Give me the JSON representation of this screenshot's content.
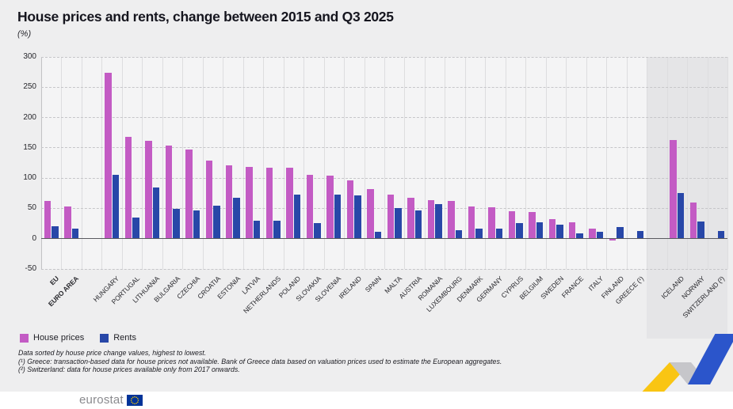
{
  "page": {
    "title": "House prices and rents, change between 2015 and Q3 2025",
    "unit_label": "(%)"
  },
  "legend": {
    "house_prices": "House prices",
    "rents": "Rents"
  },
  "footnotes": {
    "line1": "Data sorted by house price change values, highest to lowest.",
    "line2": "(¹) Greece: transaction-based data for house prices not available. Bank of Greece data based on valuation prices used to estimate the European aggregates.",
    "line3": "(²) Switzerland: data for house prices available only from 2017 onwards."
  },
  "footer": {
    "logo_text": "eurostat"
  },
  "colors": {
    "house_prices": "#c35bc4",
    "rents": "#2847a8",
    "efta_shade": "#e5e5e7",
    "ribbon_yellow": "#f9c513",
    "ribbon_gray": "#c6c6ca",
    "ribbon_blue": "#2b55cb",
    "eu_flag_blue": "#003399",
    "eu_star_yellow": "#ffcc00"
  },
  "chart_data": {
    "type": "bar",
    "title": "House prices and rents, change between 2015 and Q3 2025",
    "ylabel": "(%)",
    "ylim": [
      -50,
      300
    ],
    "yticks": [
      300,
      250,
      200,
      150,
      100,
      50,
      0,
      -50
    ],
    "grid": "horizontal dashed gridlines every 50, vertical column separators, solid zero line",
    "legend_position": "bottom-left",
    "sort_note": "Data sorted by house price change values, highest to lowest",
    "categories": [
      "EU",
      "EURO AREA",
      "HUNGARY",
      "PORTUGAL",
      "LITHUANIA",
      "BULGARIA",
      "CZECHIA",
      "CROATIA",
      "ESTONIA",
      "LATVIA",
      "NETHERLANDS",
      "POLAND",
      "SLOVAKIA",
      "SLOVENIA",
      "IRELAND",
      "SPAIN",
      "MALTA",
      "AUSTRIA",
      "ROMANIA",
      "LUXEMBOURG",
      "DENMARK",
      "GERMANY",
      "CYPRUS",
      "BELGIUM",
      "SWEDEN",
      "FRANCE",
      "ITALY",
      "FINLAND",
      "GREECE (¹)",
      "ICELAND",
      "NORWAY",
      "SWITZERLAND (²)"
    ],
    "bold_categories": [
      "EU",
      "EURO AREA"
    ],
    "gap_after_indices": [
      1,
      28
    ],
    "shaded_from_index": 29,
    "series": [
      {
        "name": "House prices",
        "color": "#c35bc4",
        "values": [
          62,
          53,
          274,
          168,
          161,
          154,
          147,
          129,
          121,
          119,
          117,
          117,
          106,
          104,
          96,
          82,
          73,
          68,
          64,
          62,
          53,
          52,
          45,
          44,
          32,
          27,
          16,
          -3,
          null,
          163,
          60,
          null
        ]
      },
      {
        "name": "Rents",
        "color": "#2847a8",
        "values": [
          20,
          17,
          105,
          35,
          84,
          49,
          47,
          55,
          67,
          30,
          30,
          73,
          26,
          73,
          72,
          12,
          51,
          46,
          57,
          14,
          17,
          16,
          26,
          27,
          23,
          9,
          12,
          19,
          13,
          76,
          28,
          13
        ]
      }
    ]
  }
}
